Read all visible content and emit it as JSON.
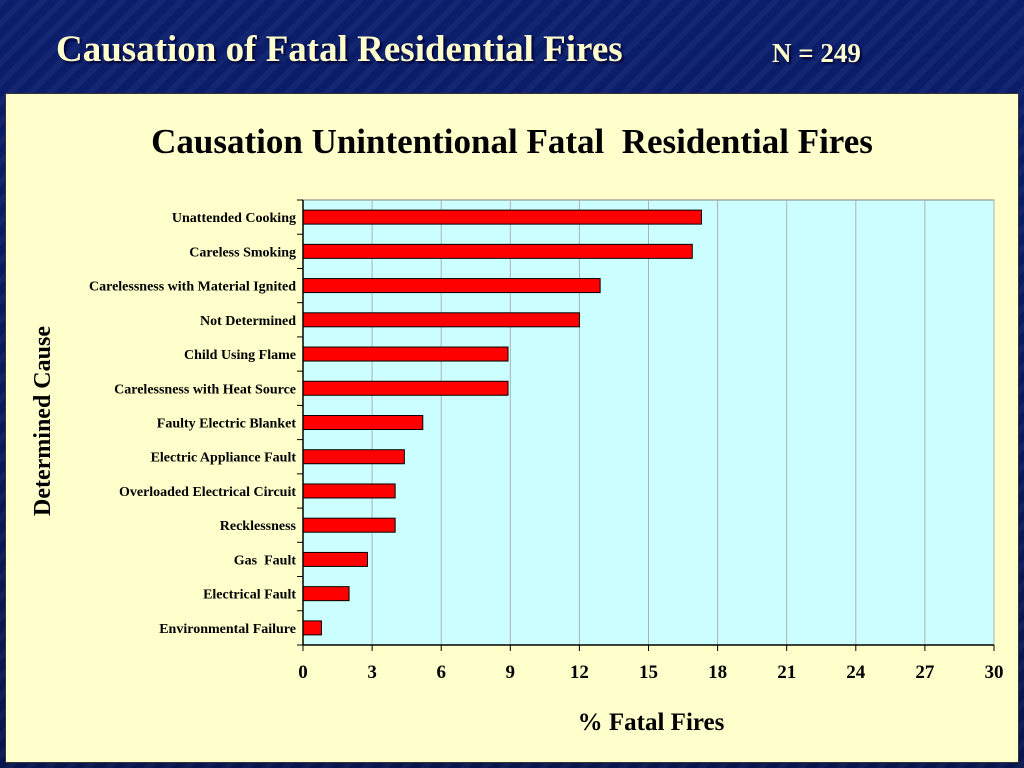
{
  "slide": {
    "title": "Causation of Fatal Residential Fires",
    "n_label": "N = 249"
  },
  "colors": {
    "background": "#0a1a5e",
    "title_text": "#ffffcc",
    "panel": "#ffffcc",
    "plot_area": "#ccffff",
    "bar": "#ff0000"
  },
  "chart_data": {
    "type": "bar",
    "orientation": "horizontal",
    "title": "Causation Unintentional Fatal  Residential Fires",
    "xlabel": "% Fatal Fires",
    "ylabel": "Determined Cause",
    "xlim": [
      0,
      30
    ],
    "xticks": [
      0,
      3,
      6,
      9,
      12,
      15,
      18,
      21,
      24,
      27,
      30
    ],
    "grid": "vertical",
    "legend": "none",
    "categories": [
      "Unattended Cooking",
      "Careless Smoking",
      "Carelessness with Material Ignited",
      "Not Determined",
      "Child Using Flame",
      "Carelessness with Heat Source",
      "Faulty Electric Blanket",
      "Electric Appliance Fault",
      "Overloaded Electrical Circuit",
      "Recklessness",
      "Gas  Fault",
      "Electrical Fault",
      "Environmental Failure"
    ],
    "values": [
      17.3,
      16.9,
      12.9,
      12.0,
      8.9,
      8.9,
      5.2,
      4.4,
      4.0,
      4.0,
      2.8,
      2.0,
      0.8
    ]
  }
}
